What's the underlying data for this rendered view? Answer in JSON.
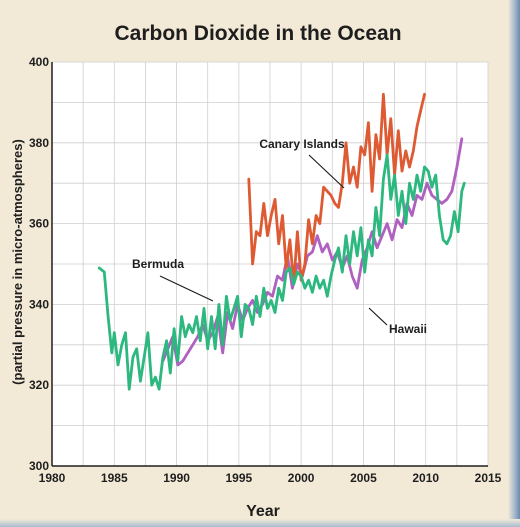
{
  "chart_data": {
    "type": "line",
    "title": "Carbon Dioxide in the Ocean",
    "xlabel": "Year",
    "ylabel": "(partial pressure in micro-atmospheres)",
    "xlim": [
      1980,
      2015
    ],
    "ylim": [
      300,
      400
    ],
    "x_ticks": [
      1980,
      1985,
      1990,
      1995,
      2000,
      2005,
      2010,
      2015
    ],
    "y_ticks": [
      300,
      320,
      340,
      360,
      380,
      400
    ],
    "grid": true,
    "colors": {
      "background": "#f2ead7",
      "plot_background": "#ffffff",
      "grid": "#cfcfcf",
      "Bermuda": "#2cb87f",
      "Hawaii": "#b060c0",
      "Canary Islands": "#de5a33"
    },
    "series": [
      {
        "name": "Bermuda",
        "x": [
          1983.8,
          1984.2,
          1984.5,
          1984.8,
          1985.0,
          1985.3,
          1985.6,
          1985.9,
          1986.2,
          1986.5,
          1986.8,
          1987.1,
          1987.4,
          1987.7,
          1988.0,
          1988.3,
          1988.6,
          1988.9,
          1989.2,
          1989.5,
          1989.8,
          1990.1,
          1990.4,
          1990.7,
          1991.0,
          1991.3,
          1991.6,
          1991.9,
          1992.2,
          1992.5,
          1992.8,
          1993.1,
          1993.4,
          1993.7,
          1994.0,
          1994.3,
          1994.6,
          1994.9,
          1995.2,
          1995.5,
          1995.8,
          1996.1,
          1996.4,
          1996.7,
          1997.0,
          1997.3,
          1997.6,
          1997.9,
          1998.2,
          1998.5,
          1998.8,
          1999.1,
          1999.4,
          1999.7,
          2000.0,
          2000.3,
          2000.6,
          2000.9,
          2001.2,
          2001.5,
          2001.8,
          2002.1,
          2002.4,
          2002.7,
          2003.0,
          2003.3,
          2003.6,
          2003.9,
          2004.2,
          2004.5,
          2004.8,
          2005.1,
          2005.4,
          2005.7,
          2006.0,
          2006.3,
          2006.6,
          2006.9,
          2007.2,
          2007.5,
          2007.8,
          2008.1,
          2008.4,
          2008.7,
          2009.0,
          2009.3,
          2009.6,
          2009.9,
          2010.2,
          2010.5,
          2010.8,
          2011.1,
          2011.4,
          2011.7,
          2012.0,
          2012.3,
          2012.6,
          2012.9,
          2013.1
        ],
        "values": [
          349,
          348,
          337,
          328,
          333,
          325,
          330,
          333,
          319,
          327,
          329,
          321,
          327,
          333,
          320,
          322,
          319,
          327,
          331,
          323,
          334,
          326,
          337,
          332,
          335,
          333,
          337,
          331,
          339,
          329,
          337,
          329,
          340,
          330,
          342,
          336,
          339,
          342,
          332,
          340,
          339,
          335,
          342,
          337,
          344,
          339,
          341,
          338,
          344,
          341,
          348,
          349,
          345,
          348,
          347,
          344,
          346,
          343,
          347,
          344,
          346,
          342,
          347,
          351,
          354,
          348,
          357,
          350,
          358,
          352,
          359,
          348,
          356,
          352,
          364,
          357,
          371,
          377,
          366,
          372,
          362,
          368,
          360,
          370,
          366,
          372,
          368,
          374,
          373,
          369,
          372,
          362,
          356,
          355,
          357,
          363,
          358,
          368,
          370
        ]
      },
      {
        "name": "Hawaii",
        "x": [
          1988.9,
          1989.3,
          1989.7,
          1990.1,
          1990.5,
          1990.9,
          1991.3,
          1991.7,
          1992.1,
          1992.5,
          1992.9,
          1993.3,
          1993.7,
          1994.1,
          1994.5,
          1994.9,
          1995.3,
          1995.7,
          1996.1,
          1996.5,
          1996.9,
          1997.3,
          1997.7,
          1998.1,
          1998.5,
          1998.9,
          1999.3,
          1999.7,
          2000.1,
          2000.5,
          2000.9,
          2001.3,
          2001.7,
          2002.1,
          2002.5,
          2002.9,
          2003.3,
          2003.7,
          2004.1,
          2004.5,
          2004.9,
          2005.3,
          2005.7,
          2006.1,
          2006.5,
          2006.9,
          2007.3,
          2007.7,
          2008.1,
          2008.5,
          2008.9,
          2009.3,
          2009.7,
          2010.1,
          2010.5,
          2010.9,
          2011.3,
          2011.7,
          2012.1,
          2012.5,
          2012.9
        ],
        "values": [
          326,
          329,
          332,
          325,
          326,
          328,
          330,
          332,
          335,
          331,
          333,
          337,
          328,
          338,
          334,
          340,
          336,
          339,
          341,
          338,
          340,
          343,
          342,
          347,
          346,
          352,
          344,
          350,
          347,
          352,
          353,
          357,
          353,
          355,
          351,
          353,
          349,
          352,
          347,
          344,
          351,
          354,
          358,
          354,
          357,
          360,
          356,
          361,
          359,
          365,
          362,
          367,
          366,
          370,
          367,
          366,
          365,
          366,
          368,
          374,
          381
        ]
      },
      {
        "name": "Canary Islands",
        "x": [
          1995.8,
          1996.1,
          1996.4,
          1996.7,
          1997.0,
          1997.3,
          1997.6,
          1997.9,
          1998.2,
          1998.5,
          1998.8,
          1999.1,
          1999.4,
          1999.7,
          2000.0,
          2000.3,
          2000.6,
          2000.9,
          2001.2,
          2001.5,
          2001.8,
          2002.1,
          2002.4,
          2002.7,
          2003.0,
          2003.3,
          2003.6,
          2003.9,
          2004.2,
          2004.5,
          2004.8,
          2005.1,
          2005.4,
          2005.7,
          2006.0,
          2006.3,
          2006.6,
          2006.9,
          2007.2,
          2007.5,
          2007.8,
          2008.1,
          2008.4,
          2008.7,
          2009.0,
          2009.3,
          2009.6,
          2009.9
        ],
        "values": [
          371,
          350,
          358,
          357,
          365,
          357,
          362,
          366,
          355,
          362,
          349,
          356,
          345,
          358,
          346,
          350,
          361,
          355,
          362,
          360,
          369,
          368,
          367,
          365,
          364,
          370,
          380,
          370,
          374,
          369,
          379,
          377,
          385,
          368,
          382,
          376,
          392,
          377,
          386,
          372,
          383,
          373,
          378,
          374,
          378,
          384,
          388,
          392
        ]
      }
    ],
    "annotations": [
      {
        "text": "Canary Islands",
        "series": "Canary Islands"
      },
      {
        "text": "Bermuda",
        "series": "Bermuda"
      },
      {
        "text": "Hawaii",
        "series": "Hawaii"
      }
    ]
  }
}
